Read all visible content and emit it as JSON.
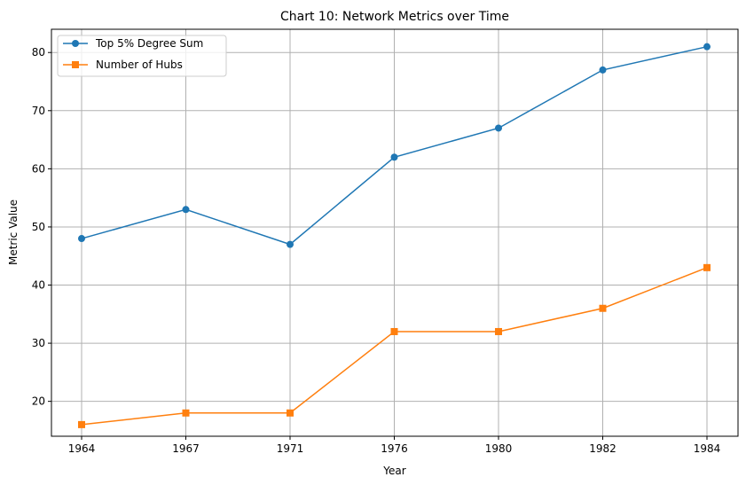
{
  "chart_data": {
    "type": "line",
    "title": "Chart 10: Network Metrics over Time",
    "xlabel": "Year",
    "ylabel": "Metric Value",
    "categories": [
      "1964",
      "1967",
      "1971",
      "1976",
      "1980",
      "1982",
      "1984"
    ],
    "ylim": [
      14,
      84
    ],
    "yticks": [
      20,
      30,
      40,
      50,
      60,
      70,
      80
    ],
    "grid": true,
    "legend_position": "top-left",
    "series": [
      {
        "name": "Top 5% Degree Sum",
        "color": "#1f77b4",
        "marker": "circle",
        "values": [
          48,
          53,
          47,
          62,
          67,
          77,
          81
        ]
      },
      {
        "name": "Number of Hubs",
        "color": "#ff7f0e",
        "marker": "square",
        "values": [
          16,
          18,
          18,
          32,
          32,
          36,
          43
        ]
      }
    ]
  }
}
